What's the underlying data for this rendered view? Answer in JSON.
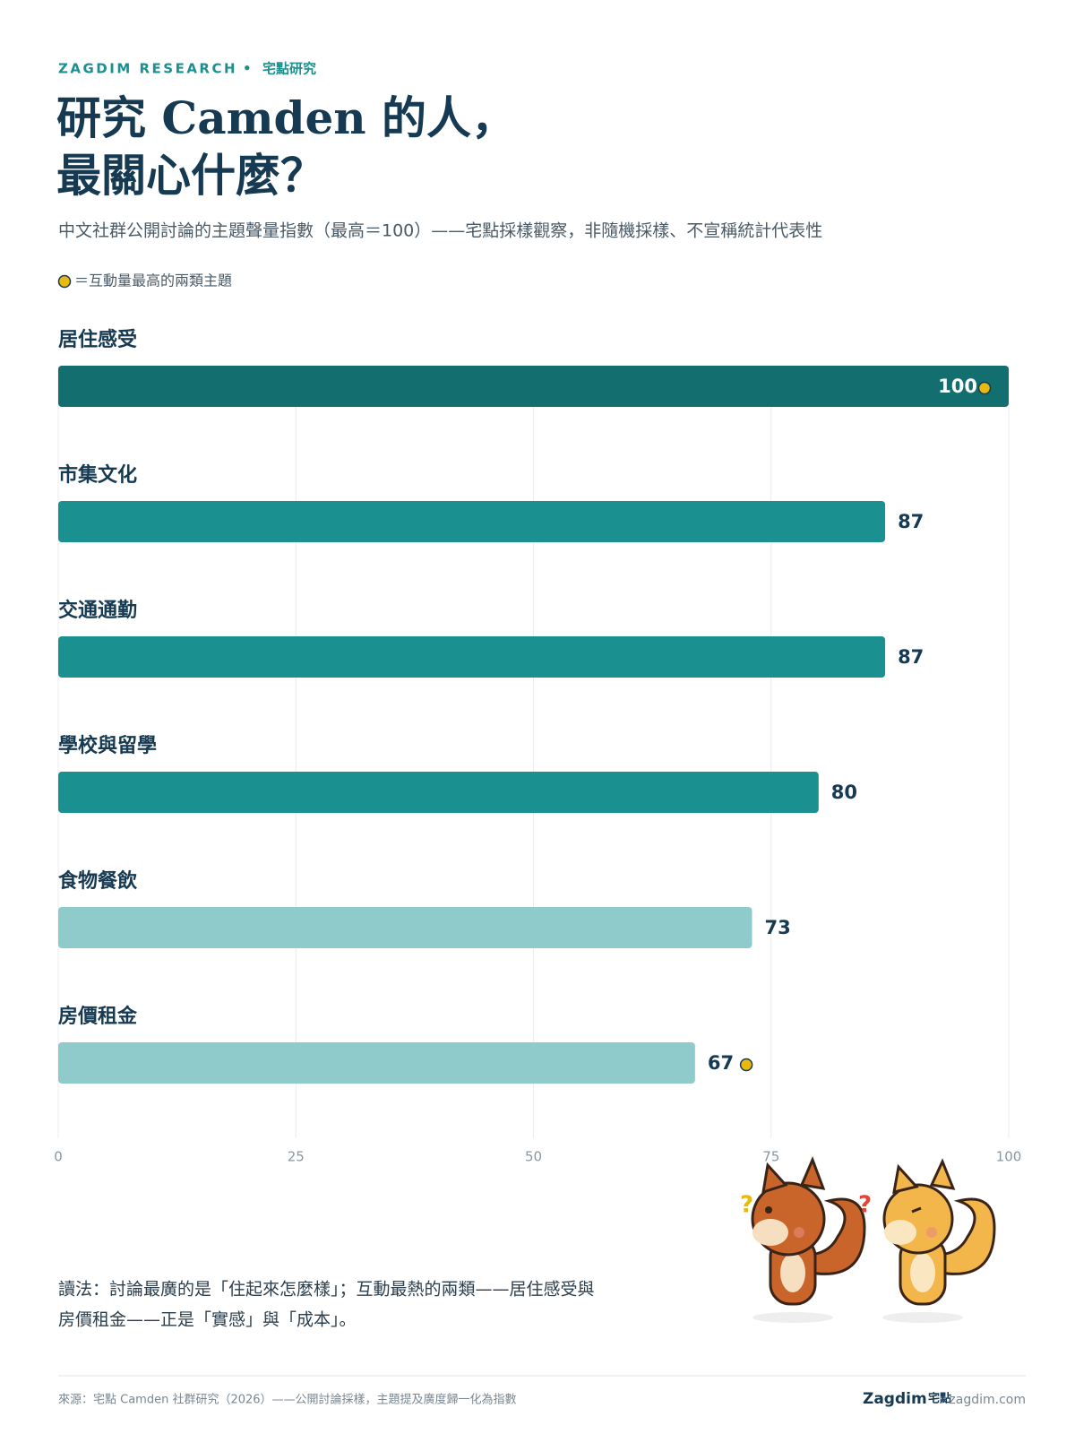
{
  "kicker": {
    "brand": "ZAGDIM RESEARCH",
    "separator": "•",
    "name": "宅點研究"
  },
  "chart_data": {
    "type": "bar",
    "orientation": "horizontal",
    "title": [
      "研究 Camden 的人，",
      "最關心什麼？"
    ],
    "subtitle": "中文社群公開討論的主題聲量指數（最高＝100）——宅點採樣觀察，非隨機採樣、不宣稱統計代表性",
    "highlight_legend": "＝互動量最高的兩類主題",
    "categories": [
      "居住感受",
      "市集文化",
      "交通通勤",
      "學校與留學",
      "食物餐飲",
      "房價租金"
    ],
    "values": [
      100,
      87,
      87,
      80,
      73,
      67
    ],
    "colors": [
      "#136e70",
      "#1a9090",
      "#1a9090",
      "#1a9090",
      "#90cbcb",
      "#90cbcb"
    ],
    "highlight": [
      true,
      false,
      false,
      false,
      false,
      true
    ],
    "highlight_color": "#e8b90f",
    "xlim": [
      0,
      100
    ],
    "xticks": [
      0,
      25,
      50,
      75,
      100
    ],
    "grid": true
  },
  "note": [
    "讀法：討論最廣的是「住起來怎麼樣」；互動最熱的兩類——居住感受與",
    "房價租金——正是「實感」與「成本」。"
  ],
  "footer": {
    "source": "來源：宅點 Camden 社群研究（2026）——公開討論採樣，主題提及廣度歸一化為指數",
    "logo": "Zagdim",
    "logo_cn": "宅點",
    "url": "zagdim.com"
  }
}
